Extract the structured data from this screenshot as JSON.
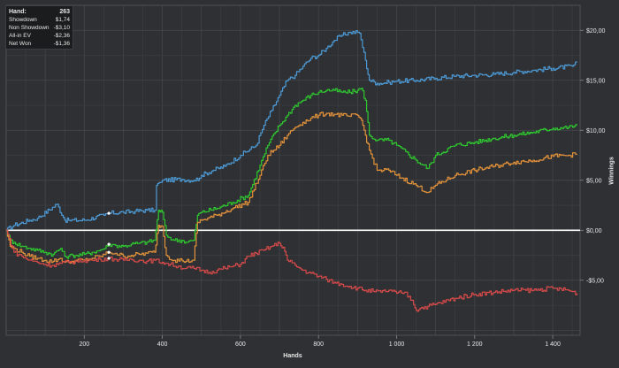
{
  "stats": {
    "rows": [
      {
        "label": "Hand:",
        "value": "263"
      },
      {
        "label": "Showdown",
        "value": "$1,74"
      },
      {
        "label": "Non Showdown",
        "value": "-$3,10"
      },
      {
        "label": "All-in EV",
        "value": "-$2,36"
      },
      {
        "label": "Net Won",
        "value": "-$1,36"
      }
    ]
  },
  "chart_data": {
    "type": "line",
    "xlabel": "Hands",
    "ylabel": "Winnings",
    "xlim": [
      0,
      1470
    ],
    "ylim": [
      -10.5,
      22.5
    ],
    "x_ticks": [
      200,
      400,
      600,
      800,
      1000,
      1200,
      1400
    ],
    "x_tick_labels": [
      "200",
      "400",
      "600",
      "800",
      "1 000",
      "1 200",
      "1 400"
    ],
    "y_ticks": [
      -5,
      0,
      5,
      10,
      15,
      20
    ],
    "y_tick_labels": [
      "-$5,00",
      "$0,00",
      "$5,00",
      "$10,00",
      "$15,00",
      "$20,00"
    ],
    "grid": true,
    "zero_line": true,
    "cursor_hand": 263,
    "colors": {
      "blue": "#4d9ad6",
      "green": "#2fc92f",
      "orange": "#e3923a",
      "red": "#d84a4a"
    },
    "series": [
      {
        "color": "#4d9ad6",
        "x": [
          0,
          20,
          60,
          80,
          130,
          150,
          160,
          200,
          250,
          263,
          300,
          330,
          360,
          380,
          385,
          395,
          400,
          450,
          480,
          495,
          500,
          530,
          560,
          600,
          640,
          660,
          680,
          700,
          720,
          740,
          760,
          780,
          800,
          820,
          840,
          860,
          880,
          900,
          905,
          920,
          930,
          950,
          980,
          1000,
          1050,
          1100,
          1150,
          1200,
          1250,
          1300,
          1350,
          1400,
          1450,
          1462
        ],
        "y": [
          0,
          0.5,
          1,
          1.2,
          2.6,
          1.0,
          1.0,
          1.0,
          1.5,
          1.7,
          1.8,
          1.9,
          2.0,
          2.0,
          4.5,
          4.8,
          5.0,
          5.1,
          5.0,
          5.2,
          5.5,
          6.0,
          6.4,
          7.5,
          8.5,
          10.5,
          12.0,
          13.5,
          15.0,
          15.5,
          16.4,
          17.2,
          17.5,
          18.2,
          19.0,
          19.5,
          19.8,
          19.8,
          19.7,
          17.0,
          15.0,
          14.7,
          14.8,
          14.9,
          15.0,
          15.2,
          15.4,
          15.5,
          15.6,
          15.8,
          16.0,
          16.2,
          16.4,
          16.8
        ]
      },
      {
        "color": "#2fc92f",
        "x": [
          0,
          10,
          20,
          40,
          60,
          80,
          100,
          120,
          140,
          150,
          160,
          170,
          180,
          200,
          220,
          240,
          260,
          263,
          280,
          300,
          320,
          340,
          360,
          380,
          390,
          400,
          410,
          430,
          450,
          460,
          480,
          490,
          500,
          540,
          580,
          620,
          650,
          670,
          700,
          720,
          740,
          760,
          780,
          800,
          820,
          840,
          860,
          880,
          900,
          910,
          920,
          930,
          950,
          980,
          1000,
          1050,
          1080,
          1100,
          1150,
          1200,
          1250,
          1300,
          1350,
          1400,
          1440,
          1462
        ],
        "y": [
          0,
          -1.0,
          -1.2,
          -1.6,
          -1.8,
          -2.0,
          -2.2,
          -2.4,
          -1.8,
          -2.6,
          -2.6,
          -2.5,
          -2.5,
          -2.4,
          -2.2,
          -2.0,
          -1.6,
          -1.4,
          -1.5,
          -1.6,
          -1.4,
          -1.3,
          -1.2,
          -1.0,
          2.0,
          1.8,
          -0.5,
          -1.0,
          -1.0,
          -1.2,
          -1.0,
          1.5,
          1.8,
          2.2,
          2.8,
          3.5,
          6.5,
          8.5,
          10.5,
          11.5,
          12.5,
          13.0,
          13.5,
          13.8,
          14.0,
          14.0,
          13.8,
          13.8,
          14.0,
          14.2,
          13.0,
          9.5,
          9.0,
          9.0,
          8.5,
          7.0,
          6.2,
          7.5,
          8.5,
          8.8,
          9.2,
          9.5,
          9.8,
          10.2,
          10.3,
          10.5
        ]
      },
      {
        "color": "#e3923a",
        "x": [
          0,
          10,
          20,
          40,
          60,
          80,
          100,
          120,
          140,
          150,
          160,
          170,
          180,
          200,
          220,
          240,
          260,
          263,
          280,
          300,
          320,
          340,
          360,
          380,
          390,
          400,
          410,
          430,
          450,
          460,
          480,
          490,
          500,
          540,
          580,
          620,
          650,
          670,
          700,
          720,
          740,
          760,
          780,
          800,
          820,
          840,
          860,
          880,
          900,
          910,
          920,
          930,
          950,
          980,
          1000,
          1050,
          1080,
          1100,
          1150,
          1200,
          1250,
          1300,
          1350,
          1400,
          1440,
          1462
        ],
        "y": [
          0,
          -1.6,
          -1.8,
          -2.2,
          -2.6,
          -2.8,
          -3.0,
          -3.1,
          -2.8,
          -3.2,
          -3.2,
          -3.1,
          -3.0,
          -3.0,
          -2.8,
          -2.6,
          -2.3,
          -2.2,
          -2.3,
          -2.6,
          -2.5,
          -2.4,
          -2.3,
          -2.2,
          0.5,
          0.4,
          -2.5,
          -3.0,
          -3.0,
          -3.1,
          -3.0,
          0.8,
          1.0,
          1.5,
          2.2,
          2.8,
          5.5,
          7.5,
          8.5,
          9.5,
          10.3,
          10.8,
          11.2,
          11.5,
          11.7,
          11.6,
          11.5,
          11.4,
          11.5,
          11.0,
          9.5,
          8.0,
          6.0,
          6.0,
          5.5,
          4.5,
          3.8,
          4.5,
          5.5,
          6.0,
          6.4,
          6.8,
          7.0,
          7.4,
          7.5,
          7.6
        ]
      },
      {
        "color": "#d84a4a",
        "x": [
          0,
          20,
          40,
          60,
          80,
          100,
          120,
          140,
          160,
          180,
          200,
          220,
          240,
          260,
          280,
          300,
          320,
          340,
          360,
          380,
          400,
          420,
          440,
          460,
          480,
          500,
          520,
          540,
          560,
          580,
          600,
          620,
          640,
          660,
          680,
          700,
          710,
          720,
          740,
          760,
          780,
          800,
          820,
          840,
          860,
          880,
          900,
          920,
          940,
          960,
          980,
          1000,
          1020,
          1040,
          1050,
          1060,
          1080,
          1100,
          1150,
          1200,
          1250,
          1300,
          1350,
          1400,
          1440,
          1462
        ],
        "y": [
          0,
          -2.2,
          -2.6,
          -3.0,
          -3.2,
          -3.4,
          -3.5,
          -3.3,
          -3.2,
          -3.1,
          -3.0,
          -3.0,
          -2.9,
          -2.8,
          -2.9,
          -3.0,
          -2.9,
          -3.0,
          -3.1,
          -3.0,
          -3.2,
          -3.4,
          -3.6,
          -3.8,
          -3.8,
          -4.0,
          -4.2,
          -4.0,
          -3.8,
          -3.6,
          -3.4,
          -2.6,
          -2.3,
          -2.0,
          -1.6,
          -1.3,
          -1.7,
          -3.0,
          -3.5,
          -4.0,
          -4.3,
          -4.6,
          -4.9,
          -5.2,
          -5.4,
          -5.6,
          -5.8,
          -6.0,
          -6.1,
          -6.2,
          -6.0,
          -6.3,
          -6.2,
          -7.0,
          -8.0,
          -7.8,
          -7.6,
          -7.4,
          -6.8,
          -6.4,
          -6.2,
          -6.0,
          -6.0,
          -5.8,
          -6.0,
          -6.3
        ]
      }
    ]
  }
}
